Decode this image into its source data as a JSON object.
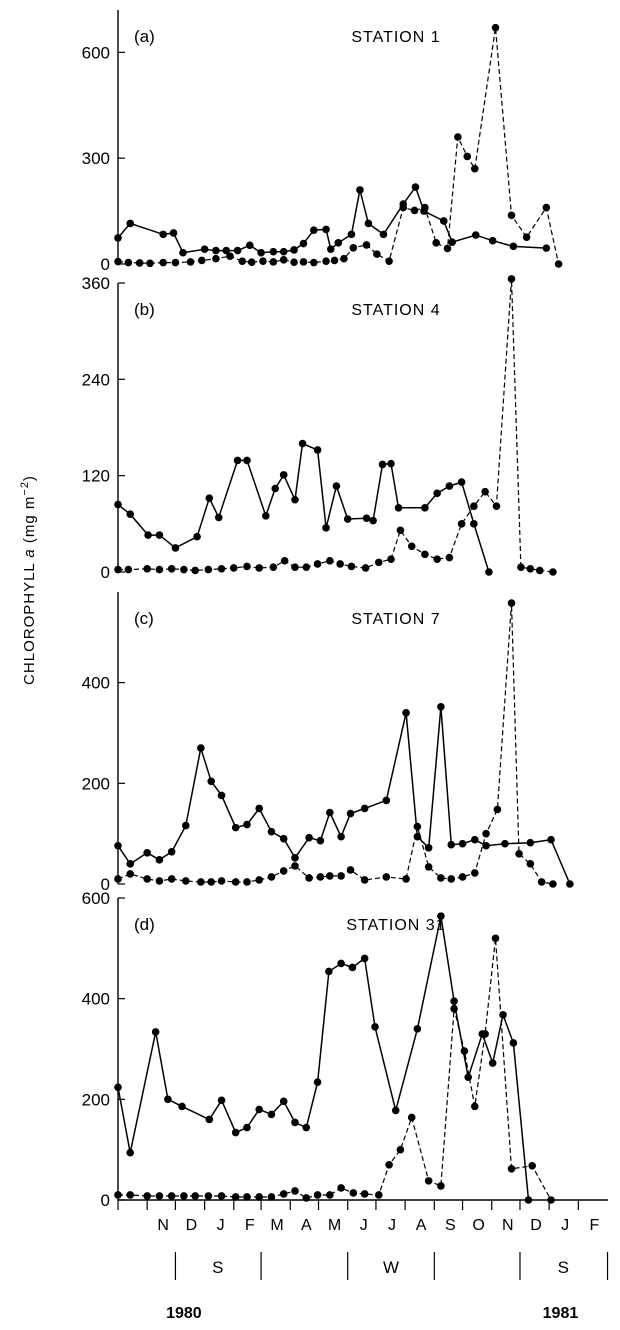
{
  "chart_data": {
    "type": "line",
    "ylabel": "CHLOROPHYLL a (mg m−2)",
    "ylabel_parts": {
      "main": "CHLOROPHYLL",
      "italic": "a",
      "unit": "(mg m",
      "exp": "−2",
      "close": ")"
    },
    "x_domain": [
      0,
      512
    ],
    "x_ticks": [
      {
        "x": 0,
        "label": ""
      },
      {
        "x": 31,
        "label": "N"
      },
      {
        "x": 61,
        "label": "D"
      },
      {
        "x": 92,
        "label": "J"
      },
      {
        "x": 123,
        "label": "F"
      },
      {
        "x": 152,
        "label": "M"
      },
      {
        "x": 183,
        "label": "A"
      },
      {
        "x": 213,
        "label": "M"
      },
      {
        "x": 244,
        "label": "J"
      },
      {
        "x": 274,
        "label": "J"
      },
      {
        "x": 305,
        "label": "A"
      },
      {
        "x": 336,
        "label": "S"
      },
      {
        "x": 366,
        "label": "O"
      },
      {
        "x": 397,
        "label": "N"
      },
      {
        "x": 427,
        "label": "D"
      },
      {
        "x": 458,
        "label": "J"
      },
      {
        "x": 489,
        "label": "F"
      }
    ],
    "season_bar": {
      "dividers": [
        61,
        152,
        244,
        336,
        427,
        520
      ],
      "labels": [
        {
          "x": 106,
          "text": "S"
        },
        {
          "x": 290,
          "text": "W"
        },
        {
          "x": 473,
          "text": "S"
        }
      ]
    },
    "years": [
      {
        "x": 70,
        "text": "1980"
      },
      {
        "x": 470,
        "text": "1981"
      }
    ],
    "panels": [
      {
        "letter": "(a)",
        "title": "STATION 1",
        "ylim": [
          0,
          720
        ],
        "yticks": [
          0,
          300,
          600
        ],
        "series": [
          {
            "style": "solid",
            "x": [
              0,
              13,
              48,
              59,
              69,
              92,
              104,
              115,
              127,
              140,
              152,
              165,
              176,
              187,
              197,
              208,
              221,
              226,
              234,
              248,
              257,
              266,
              282,
              303,
              316,
              325,
              346,
              355,
              380,
              398,
              420,
              455
            ],
            "y": [
              74,
              115,
              84,
              88,
              32,
              42,
              38,
              38,
              38,
              53,
              32,
              35,
              35,
              40,
              58,
              96,
              98,
              42,
              60,
              84,
              210,
              115,
              84,
              170,
              218,
              150,
              122,
              62,
              82,
              66,
              50,
              45
            ]
          },
          {
            "style": "dashed",
            "x": [
              0,
              11,
              23,
              34,
              48,
              61,
              77,
              89,
              104,
              119,
              132,
              142,
              154,
              165,
              176,
              187,
              197,
              208,
              221,
              230,
              240,
              250,
              264,
              275,
              288,
              303,
              315,
              326,
              338,
              350,
              361,
              371,
              379,
              401,
              418,
              434,
              455,
              468,
              478,
              503
            ],
            "y": [
              7,
              4,
              3,
              2,
              4,
              4,
              6,
              10,
              15,
              22,
              8,
              5,
              8,
              6,
              12,
              5,
              6,
              4,
              8,
              10,
              15,
              46,
              54,
              28,
              8,
              160,
              152,
              160,
              60,
              44,
              360,
              305,
              270,
              670,
              138,
              76,
              160,
              0,
              0,
              0
            ]
          }
        ]
      },
      {
        "letter": "(b)",
        "title": "STATION 4",
        "ylim": [
          0,
          360
        ],
        "yticks": [
          0,
          120,
          240,
          360
        ],
        "series": [
          {
            "style": "solid",
            "x": [
              0,
              13,
              32,
              44,
              61,
              84,
              97,
              107,
              127,
              137,
              157,
              167,
              176,
              188,
              196,
              212,
              221,
              232,
              244,
              264,
              271,
              281,
              290,
              298,
              326,
              339,
              352,
              365,
              378,
              394,
              418,
              440,
              463,
              477,
              501
            ],
            "y": [
              84,
              72,
              46,
              46,
              30,
              44,
              92,
              68,
              139,
              139,
              70,
              104,
              121,
              90,
              160,
              152,
              55,
              107,
              66,
              67,
              64,
              134,
              135,
              80,
              80,
              98,
              107,
              112,
              60,
              0,
              0,
              0,
              0,
              0,
              0
            ]
          },
          {
            "style": "dashed",
            "x": [
              0,
              11,
              31,
              44,
              57,
              70,
              82,
              96,
              110,
              123,
              137,
              150,
              165,
              177,
              188,
              200,
              212,
              225,
              236,
              248,
              263,
              277,
              290,
              300,
              312,
              326,
              339,
              352,
              365,
              378,
              390,
              402,
              418,
              428,
              438,
              448,
              462,
              477,
              501
            ],
            "y": [
              3,
              3,
              4,
              3,
              4,
              3,
              2,
              3,
              4,
              5,
              7,
              5,
              6,
              14,
              6,
              6,
              10,
              14,
              10,
              7,
              5,
              12,
              16,
              52,
              32,
              22,
              16,
              18,
              60,
              82,
              100,
              82,
              365,
              6,
              4,
              2,
              0,
              0,
              0
            ]
          }
        ]
      },
      {
        "letter": "(c)",
        "title": "STATION 7",
        "ylim": [
          0,
          580
        ],
        "yticks": [
          0,
          200,
          400
        ],
        "series": [
          {
            "style": "solid",
            "x": [
              0,
              13,
              31,
              44,
              57,
              72,
              88,
              99,
              110,
              125,
              137,
              150,
              163,
              176,
              188,
              203,
              215,
              225,
              237,
              247,
              262,
              285,
              306,
              318,
              330,
              343,
              354,
              366,
              379,
              391,
              411,
              438,
              460,
              480,
              501
            ],
            "y": [
              76,
              40,
              62,
              48,
              64,
              116,
              270,
              204,
              176,
              112,
              118,
              150,
              104,
              90,
              52,
              92,
              86,
              142,
              94,
              140,
              150,
              166,
              340,
              94,
              72,
              352,
              78,
              80,
              88,
              76,
              80,
              82,
              88,
              0,
              0
            ]
          },
          {
            "style": "dashed",
            "x": [
              0,
              13,
              31,
              44,
              57,
              72,
              88,
              99,
              110,
              125,
              137,
              150,
              163,
              176,
              188,
              203,
              215,
              225,
              237,
              247,
              262,
              285,
              306,
              318,
              330,
              343,
              354,
              366,
              379,
              391,
              403,
              418,
              426,
              438,
              450,
              462,
              477,
              501
            ],
            "y": [
              10,
              20,
              10,
              6,
              10,
              6,
              4,
              4,
              6,
              4,
              4,
              8,
              14,
              26,
              36,
              12,
              14,
              16,
              16,
              28,
              8,
              14,
              10,
              114,
              34,
              12,
              10,
              14,
              22,
              100,
              148,
              558,
              60,
              40,
              4,
              0,
              0,
              0
            ]
          }
        ]
      },
      {
        "letter": "(d)",
        "title": "STATION 31",
        "ylim": [
          0,
          600
        ],
        "yticks": [
          0,
          200,
          400,
          600
        ],
        "series": [
          {
            "style": "solid",
            "x": [
              0,
              13,
              40,
              53,
              68,
              97,
              110,
              125,
              137,
              150,
              163,
              176,
              188,
              200,
              212,
              224,
              237,
              249,
              262,
              273,
              295,
              318,
              343,
              357,
              372,
              387,
              398,
              409,
              420,
              436,
              458,
              482
            ],
            "y": [
              224,
              94,
              334,
              200,
              186,
              160,
              198,
              134,
              144,
              180,
              170,
              196,
              154,
              144,
              234,
              454,
              470,
              462,
              480,
              344,
              178,
              340,
              564,
              395,
              244,
              330,
              272,
              368,
              312,
              0,
              0,
              0
            ]
          },
          {
            "style": "dashed",
            "x": [
              0,
              13,
              31,
              44,
              57,
              70,
              82,
              96,
              110,
              125,
              137,
              150,
              163,
              176,
              188,
              200,
              212,
              225,
              237,
              250,
              262,
              277,
              288,
              300,
              312,
              330,
              343,
              357,
              368,
              379,
              390,
              401,
              418,
              440,
              460,
              482
            ],
            "y": [
              10,
              10,
              8,
              8,
              8,
              8,
              8,
              8,
              8,
              6,
              6,
              6,
              6,
              12,
              18,
              4,
              10,
              10,
              24,
              14,
              12,
              10,
              70,
              100,
              164,
              38,
              28,
              380,
              296,
              186,
              330,
              520,
              62,
              68,
              0,
              0
            ]
          }
        ]
      }
    ]
  }
}
